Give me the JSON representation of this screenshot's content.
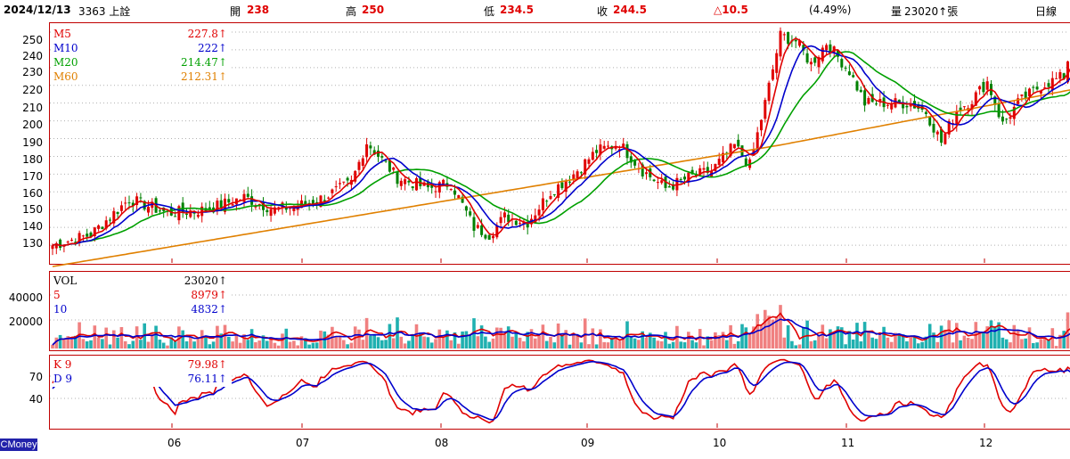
{
  "header": {
    "date": "2024/12/13",
    "stock": "3363 上詮",
    "open_label": "開",
    "open_value": "238",
    "high_label": "高",
    "high_value": "250",
    "low_label": "低",
    "low_value": "234.5",
    "close_label": "收",
    "close_value": "244.5",
    "change": "△10.5",
    "change_pct": "(4.49%)",
    "volume_label": "量",
    "volume_value": "23020↑張",
    "period": "日線"
  },
  "price_panel": {
    "y_ticks": [
      "250",
      "240",
      "230",
      "220",
      "210",
      "200",
      "190",
      "180",
      "170",
      "160",
      "150",
      "140",
      "130"
    ],
    "legend": [
      {
        "name": "M5",
        "value": "227.8↑",
        "color": "#e00000"
      },
      {
        "name": "M10",
        "value": "222↑",
        "color": "#0000cc"
      },
      {
        "name": "M20",
        "value": "214.47↑",
        "color": "#00a000"
      },
      {
        "name": "M60",
        "value": "212.31↑",
        "color": "#e08000"
      }
    ]
  },
  "volume_panel": {
    "y_ticks": [
      "40000",
      "20000"
    ],
    "legend": [
      {
        "name": "VOL",
        "value": "23020↑",
        "color": "#000000"
      },
      {
        "name": "5",
        "value": "8979↑",
        "color": "#e00000"
      },
      {
        "name": "10",
        "value": "4832↑",
        "color": "#0000cc"
      }
    ]
  },
  "kd_panel": {
    "y_ticks": [
      "70",
      "40"
    ],
    "legend": [
      {
        "name": "K 9",
        "value": "79.98↑",
        "color": "#e00000"
      },
      {
        "name": "D 9",
        "value": "76.11↑",
        "color": "#0000cc"
      }
    ]
  },
  "x_axis": {
    "months": [
      "06",
      "07",
      "08",
      "09",
      "10",
      "11",
      "12"
    ]
  },
  "logo": "CMoney",
  "chart_data": {
    "type": "candlestick",
    "title": "3363 上詮 日線",
    "price_ylim": [
      120,
      255
    ],
    "anchor_points": [
      {
        "i": 0,
        "v": 130
      },
      {
        "i": 10,
        "v": 136
      },
      {
        "i": 20,
        "v": 156
      },
      {
        "i": 30,
        "v": 148
      },
      {
        "i": 40,
        "v": 150
      },
      {
        "i": 50,
        "v": 157
      },
      {
        "i": 58,
        "v": 150
      },
      {
        "i": 68,
        "v": 154
      },
      {
        "i": 78,
        "v": 165
      },
      {
        "i": 82,
        "v": 188
      },
      {
        "i": 90,
        "v": 168
      },
      {
        "i": 98,
        "v": 162
      },
      {
        "i": 104,
        "v": 165
      },
      {
        "i": 110,
        "v": 140
      },
      {
        "i": 114,
        "v": 136
      },
      {
        "i": 118,
        "v": 146
      },
      {
        "i": 124,
        "v": 143
      },
      {
        "i": 130,
        "v": 160
      },
      {
        "i": 136,
        "v": 170
      },
      {
        "i": 142,
        "v": 183
      },
      {
        "i": 148,
        "v": 187
      },
      {
        "i": 154,
        "v": 172
      },
      {
        "i": 160,
        "v": 162
      },
      {
        "i": 166,
        "v": 168
      },
      {
        "i": 172,
        "v": 172
      },
      {
        "i": 178,
        "v": 186
      },
      {
        "i": 182,
        "v": 175
      },
      {
        "i": 186,
        "v": 210
      },
      {
        "i": 190,
        "v": 248
      },
      {
        "i": 194,
        "v": 245
      },
      {
        "i": 198,
        "v": 232
      },
      {
        "i": 202,
        "v": 244
      },
      {
        "i": 208,
        "v": 228
      },
      {
        "i": 212,
        "v": 210
      },
      {
        "i": 218,
        "v": 210
      },
      {
        "i": 224,
        "v": 210
      },
      {
        "i": 228,
        "v": 205
      },
      {
        "i": 232,
        "v": 188
      },
      {
        "i": 236,
        "v": 206
      },
      {
        "i": 240,
        "v": 212
      },
      {
        "i": 244,
        "v": 222
      },
      {
        "i": 248,
        "v": 198
      },
      {
        "i": 252,
        "v": 210
      },
      {
        "i": 258,
        "v": 220
      },
      {
        "i": 264,
        "v": 225
      },
      {
        "i": 266,
        "v": 244
      }
    ],
    "last": {
      "K": 79.98,
      "D": 76.11,
      "VOL": 23020,
      "VOL5": 8979,
      "VOL10": 4832,
      "M5": 227.8,
      "M10": 222,
      "M20": 214.47,
      "M60": 212.31
    },
    "kd_ylim": [
      0,
      100
    ]
  }
}
